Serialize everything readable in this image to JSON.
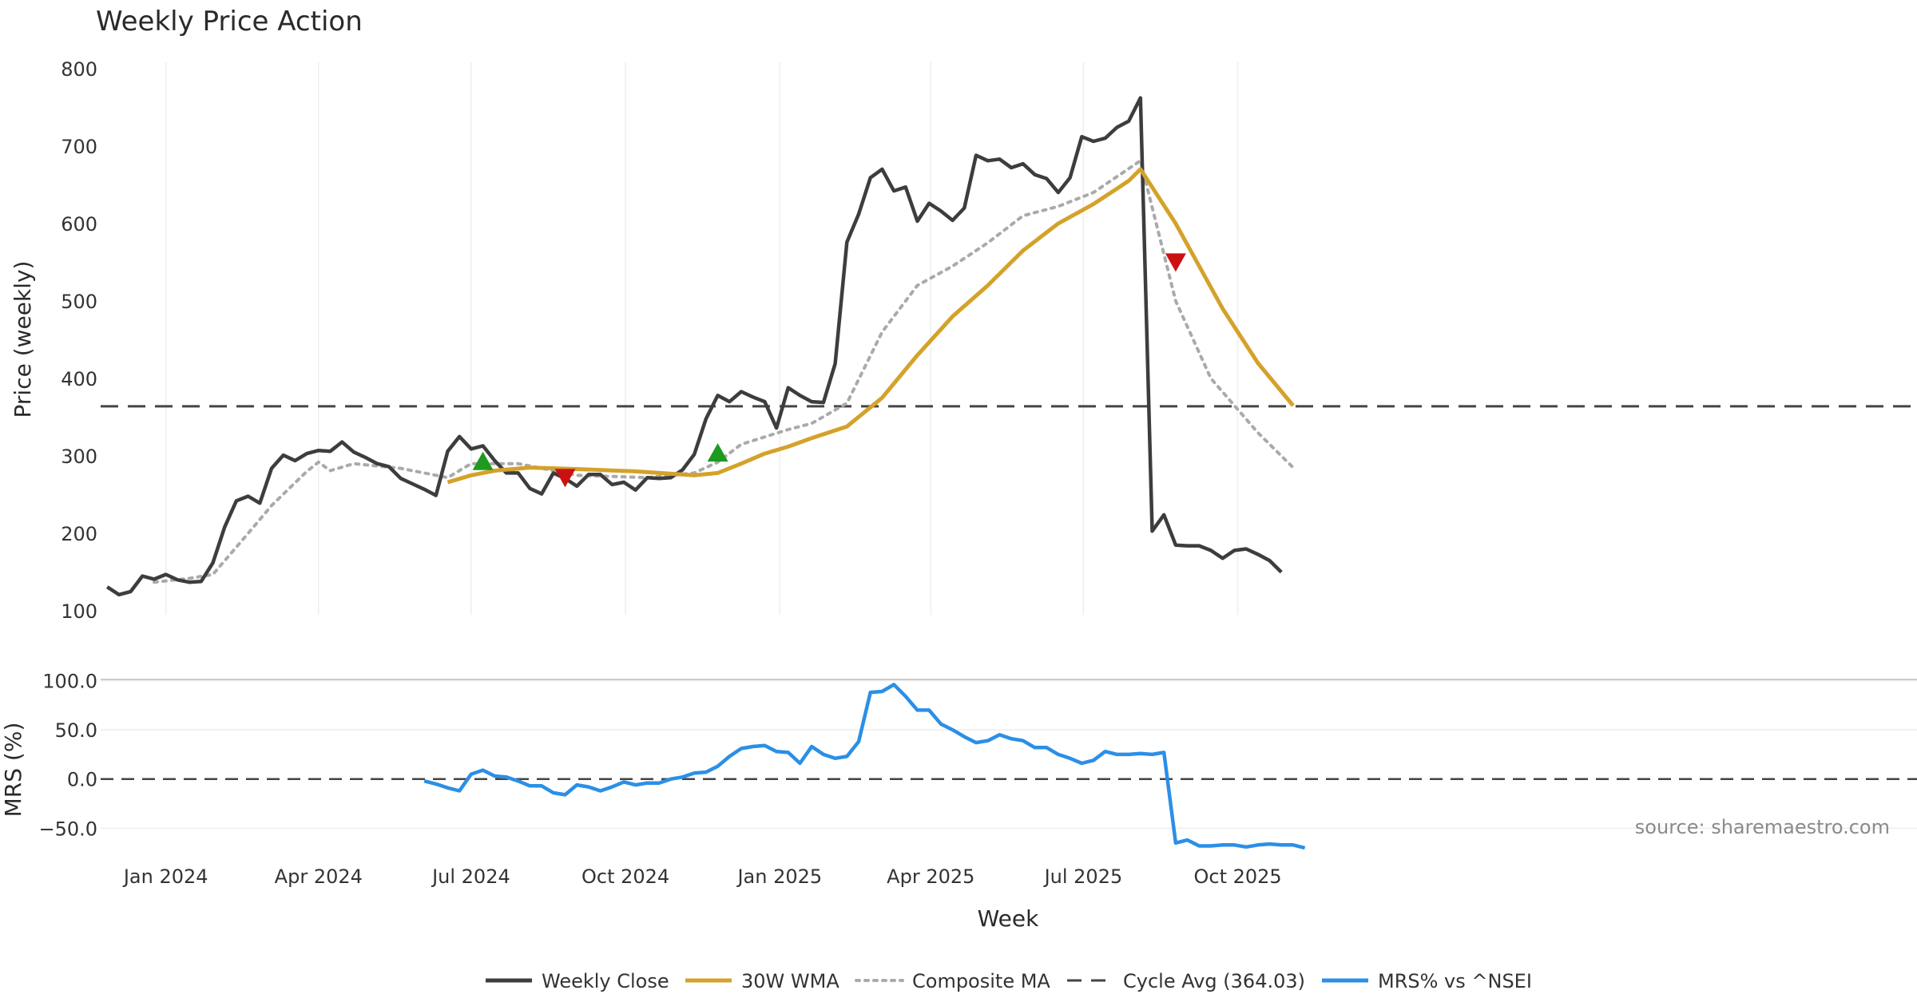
{
  "chart_data": {
    "type": "line",
    "title": "Weekly Price Action",
    "xlabel": "Week",
    "x_ticks": [
      "Jan 2024",
      "Apr 2024",
      "Jul 2024",
      "Oct 2024",
      "Jan 2025",
      "Apr 2025",
      "Jul 2025",
      "Oct 2025"
    ],
    "x_range": [
      "2023-11-27",
      "2025-11-24"
    ],
    "source_note": "source: sharemaestro.com",
    "price_panel": {
      "ylabel": "Price (weekly)",
      "ylim": [
        95,
        808
      ],
      "y_ticks": [
        100,
        200,
        300,
        400,
        500,
        600,
        700,
        800
      ],
      "cycle_avg": 364.03,
      "weekly_close": [
        [
          "2023-11-27",
          131
        ],
        [
          "2023-12-04",
          121
        ],
        [
          "2023-12-11",
          125
        ],
        [
          "2023-12-18",
          145
        ],
        [
          "2023-12-25",
          141
        ],
        [
          "2024-01-01",
          147
        ],
        [
          "2024-01-08",
          140
        ],
        [
          "2024-01-15",
          137
        ],
        [
          "2024-01-22",
          138
        ],
        [
          "2024-01-29",
          162
        ],
        [
          "2024-02-05",
          208
        ],
        [
          "2024-02-12",
          242
        ],
        [
          "2024-02-19",
          248
        ],
        [
          "2024-02-26",
          239
        ],
        [
          "2024-03-04",
          284
        ],
        [
          "2024-03-11",
          301
        ],
        [
          "2024-03-18",
          294
        ],
        [
          "2024-03-25",
          303
        ],
        [
          "2024-04-01",
          307
        ],
        [
          "2024-04-08",
          306
        ],
        [
          "2024-04-15",
          318
        ],
        [
          "2024-04-22",
          305
        ],
        [
          "2024-04-29",
          298
        ],
        [
          "2024-05-06",
          290
        ],
        [
          "2024-05-13",
          286
        ],
        [
          "2024-05-20",
          271
        ],
        [
          "2024-05-27",
          264
        ],
        [
          "2024-06-03",
          257
        ],
        [
          "2024-06-10",
          249
        ],
        [
          "2024-06-17",
          306
        ],
        [
          "2024-06-24",
          325
        ],
        [
          "2024-07-01",
          309
        ],
        [
          "2024-07-08",
          313
        ],
        [
          "2024-07-15",
          294
        ],
        [
          "2024-07-22",
          278
        ],
        [
          "2024-07-29",
          278
        ],
        [
          "2024-08-05",
          258
        ],
        [
          "2024-08-12",
          251
        ],
        [
          "2024-08-19",
          278
        ],
        [
          "2024-08-26",
          271
        ],
        [
          "2024-09-02",
          261
        ],
        [
          "2024-09-09",
          276
        ],
        [
          "2024-09-16",
          276
        ],
        [
          "2024-09-23",
          263
        ],
        [
          "2024-09-30",
          266
        ],
        [
          "2024-10-07",
          256
        ],
        [
          "2024-10-14",
          272
        ],
        [
          "2024-10-21",
          271
        ],
        [
          "2024-10-28",
          272
        ],
        [
          "2024-11-04",
          282
        ],
        [
          "2024-11-11",
          302
        ],
        [
          "2024-11-18",
          348
        ],
        [
          "2024-11-25",
          378
        ],
        [
          "2024-12-02",
          370
        ],
        [
          "2024-12-09",
          383
        ],
        [
          "2024-12-16",
          376
        ],
        [
          "2024-12-23",
          370
        ],
        [
          "2024-12-30",
          336
        ],
        [
          "2025-01-06",
          388
        ],
        [
          "2025-01-13",
          378
        ],
        [
          "2025-01-20",
          370
        ],
        [
          "2025-01-27",
          369
        ],
        [
          "2025-02-03",
          419
        ],
        [
          "2025-02-10",
          576
        ],
        [
          "2025-02-17",
          612
        ],
        [
          "2025-02-24",
          659
        ],
        [
          "2025-03-03",
          670
        ],
        [
          "2025-03-10",
          642
        ],
        [
          "2025-03-17",
          647
        ],
        [
          "2025-03-24",
          603
        ],
        [
          "2025-03-31",
          626
        ],
        [
          "2025-04-07",
          616
        ],
        [
          "2025-04-14",
          604
        ],
        [
          "2025-04-21",
          620
        ],
        [
          "2025-04-28",
          688
        ],
        [
          "2025-05-05",
          681
        ],
        [
          "2025-05-12",
          683
        ],
        [
          "2025-05-19",
          672
        ],
        [
          "2025-05-26",
          677
        ],
        [
          "2025-06-02",
          663
        ],
        [
          "2025-06-09",
          658
        ],
        [
          "2025-06-16",
          640
        ],
        [
          "2025-06-23",
          659
        ],
        [
          "2025-06-30",
          712
        ],
        [
          "2025-07-07",
          706
        ],
        [
          "2025-07-14",
          710
        ],
        [
          "2025-07-21",
          724
        ],
        [
          "2025-07-28",
          732
        ],
        [
          "2025-08-04",
          762
        ],
        [
          "2025-08-11",
          203
        ],
        [
          "2025-08-18",
          224
        ],
        [
          "2025-08-25",
          185
        ],
        [
          "2025-09-01",
          184
        ],
        [
          "2025-09-08",
          184
        ],
        [
          "2025-09-15",
          178
        ],
        [
          "2025-09-22",
          168
        ],
        [
          "2025-09-29",
          178
        ],
        [
          "2025-10-06",
          180
        ],
        [
          "2025-10-13",
          173
        ],
        [
          "2025-10-20",
          165
        ],
        [
          "2025-10-27",
          150
        ]
      ],
      "wma_30w": [
        [
          "2024-06-17",
          266
        ],
        [
          "2024-07-01",
          275
        ],
        [
          "2024-07-15",
          281
        ],
        [
          "2024-08-05",
          285
        ],
        [
          "2024-09-02",
          283
        ],
        [
          "2024-10-07",
          280
        ],
        [
          "2024-11-11",
          275
        ],
        [
          "2024-11-25",
          278
        ],
        [
          "2024-12-09",
          290
        ],
        [
          "2024-12-23",
          303
        ],
        [
          "2025-01-06",
          312
        ],
        [
          "2025-01-20",
          323
        ],
        [
          "2025-02-10",
          338
        ],
        [
          "2025-03-03",
          375
        ],
        [
          "2025-03-24",
          430
        ],
        [
          "2025-04-14",
          480
        ],
        [
          "2025-05-05",
          520
        ],
        [
          "2025-05-26",
          565
        ],
        [
          "2025-06-16",
          600
        ],
        [
          "2025-07-07",
          625
        ],
        [
          "2025-07-28",
          655
        ],
        [
          "2025-08-04",
          670
        ],
        [
          "2025-08-25",
          600
        ],
        [
          "2025-09-22",
          490
        ],
        [
          "2025-10-13",
          420
        ],
        [
          "2025-11-03",
          365
        ]
      ],
      "composite_ma": [
        [
          "2023-12-25",
          137
        ],
        [
          "2024-01-15",
          142
        ],
        [
          "2024-01-29",
          147
        ],
        [
          "2024-02-19",
          200
        ],
        [
          "2024-03-04",
          236
        ],
        [
          "2024-03-25",
          280
        ],
        [
          "2024-04-01",
          292
        ],
        [
          "2024-04-08",
          281
        ],
        [
          "2024-04-22",
          290
        ],
        [
          "2024-05-20",
          284
        ],
        [
          "2024-06-17",
          272
        ],
        [
          "2024-07-01",
          290
        ],
        [
          "2024-07-29",
          290
        ],
        [
          "2024-09-02",
          275
        ],
        [
          "2024-10-14",
          272
        ],
        [
          "2024-11-11",
          278
        ],
        [
          "2024-11-25",
          292
        ],
        [
          "2024-12-09",
          315
        ],
        [
          "2025-01-06",
          334
        ],
        [
          "2025-01-20",
          342
        ],
        [
          "2025-02-10",
          368
        ],
        [
          "2025-03-03",
          460
        ],
        [
          "2025-03-24",
          520
        ],
        [
          "2025-04-14",
          545
        ],
        [
          "2025-05-05",
          575
        ],
        [
          "2025-05-26",
          610
        ],
        [
          "2025-06-16",
          622
        ],
        [
          "2025-07-07",
          640
        ],
        [
          "2025-08-04",
          681
        ],
        [
          "2025-08-25",
          500
        ],
        [
          "2025-09-15",
          400
        ],
        [
          "2025-10-13",
          330
        ],
        [
          "2025-11-03",
          285
        ]
      ],
      "buy_signals": [
        [
          "2024-07-08",
          292
        ],
        [
          "2024-11-25",
          303
        ]
      ],
      "sell_signals": [
        [
          "2024-08-26",
          273
        ],
        [
          "2025-08-25",
          551
        ]
      ]
    },
    "mrs_panel": {
      "ylabel": "MRS (%)",
      "ylim": [
        -70,
        102
      ],
      "y_ticks": [
        100.0,
        50.0,
        0.0,
        -50.0
      ],
      "y_tick_labels": [
        "100.0",
        "50.0",
        "0.0",
        "−50.0"
      ],
      "mrs": [
        [
          "2024-06-03",
          -2
        ],
        [
          "2024-06-10",
          -5
        ],
        [
          "2024-06-17",
          -9
        ],
        [
          "2024-06-24",
          -12
        ],
        [
          "2024-07-01",
          5
        ],
        [
          "2024-07-08",
          9
        ],
        [
          "2024-07-15",
          3
        ],
        [
          "2024-07-22",
          2
        ],
        [
          "2024-07-29",
          -2
        ],
        [
          "2024-08-05",
          -7
        ],
        [
          "2024-08-12",
          -7
        ],
        [
          "2024-08-19",
          -14
        ],
        [
          "2024-08-26",
          -16
        ],
        [
          "2024-09-02",
          -6
        ],
        [
          "2024-09-09",
          -8
        ],
        [
          "2024-09-16",
          -12
        ],
        [
          "2024-09-23",
          -8
        ],
        [
          "2024-09-30",
          -3
        ],
        [
          "2024-10-07",
          -6
        ],
        [
          "2024-10-14",
          -4
        ],
        [
          "2024-10-21",
          -4
        ],
        [
          "2024-10-28",
          0
        ],
        [
          "2024-11-04",
          2
        ],
        [
          "2024-11-11",
          6
        ],
        [
          "2024-11-18",
          7
        ],
        [
          "2024-11-25",
          13
        ],
        [
          "2024-12-02",
          23
        ],
        [
          "2024-12-09",
          31
        ],
        [
          "2024-12-16",
          33
        ],
        [
          "2024-12-23",
          34
        ],
        [
          "2024-12-30",
          28
        ],
        [
          "2025-01-06",
          27
        ],
        [
          "2025-01-13",
          16
        ],
        [
          "2025-01-20",
          33
        ],
        [
          "2025-01-27",
          25
        ],
        [
          "2025-02-03",
          21
        ],
        [
          "2025-02-10",
          23
        ],
        [
          "2025-02-17",
          38
        ],
        [
          "2025-02-24",
          88
        ],
        [
          "2025-03-03",
          89
        ],
        [
          "2025-03-10",
          96
        ],
        [
          "2025-03-17",
          84
        ],
        [
          "2025-03-24",
          70
        ],
        [
          "2025-03-31",
          70
        ],
        [
          "2025-04-07",
          56
        ],
        [
          "2025-04-14",
          50
        ],
        [
          "2025-04-21",
          43
        ],
        [
          "2025-04-28",
          37
        ],
        [
          "2025-05-05",
          39
        ],
        [
          "2025-05-12",
          45
        ],
        [
          "2025-05-19",
          41
        ],
        [
          "2025-05-26",
          39
        ],
        [
          "2025-06-02",
          32
        ],
        [
          "2025-06-09",
          32
        ],
        [
          "2025-06-16",
          25
        ],
        [
          "2025-06-23",
          21
        ],
        [
          "2025-06-30",
          16
        ],
        [
          "2025-07-07",
          19
        ],
        [
          "2025-07-14",
          28
        ],
        [
          "2025-07-21",
          25
        ],
        [
          "2025-07-28",
          25
        ],
        [
          "2025-08-04",
          26
        ],
        [
          "2025-08-11",
          25
        ],
        [
          "2025-08-18",
          27
        ],
        [
          "2025-08-25",
          -65
        ],
        [
          "2025-09-01",
          -62
        ],
        [
          "2025-09-08",
          -68
        ],
        [
          "2025-09-15",
          -68
        ],
        [
          "2025-09-22",
          -67
        ],
        [
          "2025-09-29",
          -67
        ],
        [
          "2025-10-06",
          -69
        ],
        [
          "2025-10-13",
          -67
        ],
        [
          "2025-10-20",
          -66
        ],
        [
          "2025-10-27",
          -67
        ],
        [
          "2025-11-03",
          -67
        ],
        [
          "2025-11-10",
          -70
        ]
      ]
    },
    "legend": {
      "placement": "bottom",
      "entries": [
        {
          "name": "Weekly Close",
          "color": "#3d3d3d",
          "style": "solid"
        },
        {
          "name": "30W WMA",
          "color": "#d4a22a",
          "style": "solid"
        },
        {
          "name": "Composite MA",
          "color": "#aaaaaa",
          "style": "dotted"
        },
        {
          "name": "Cycle Avg (364.03)",
          "color": "#444444",
          "style": "dashed"
        },
        {
          "name": "MRS% vs ^NSEI",
          "color": "#2b8fe6",
          "style": "solid"
        }
      ]
    },
    "colors": {
      "weekly_close": "#3d3d3d",
      "wma": "#d4a22a",
      "composite": "#aaaaaa",
      "cycle": "#444444",
      "mrs": "#2b8fe6",
      "buy": "#1e9a1e",
      "sell": "#cc1111",
      "grid": "#eeeeee"
    }
  }
}
